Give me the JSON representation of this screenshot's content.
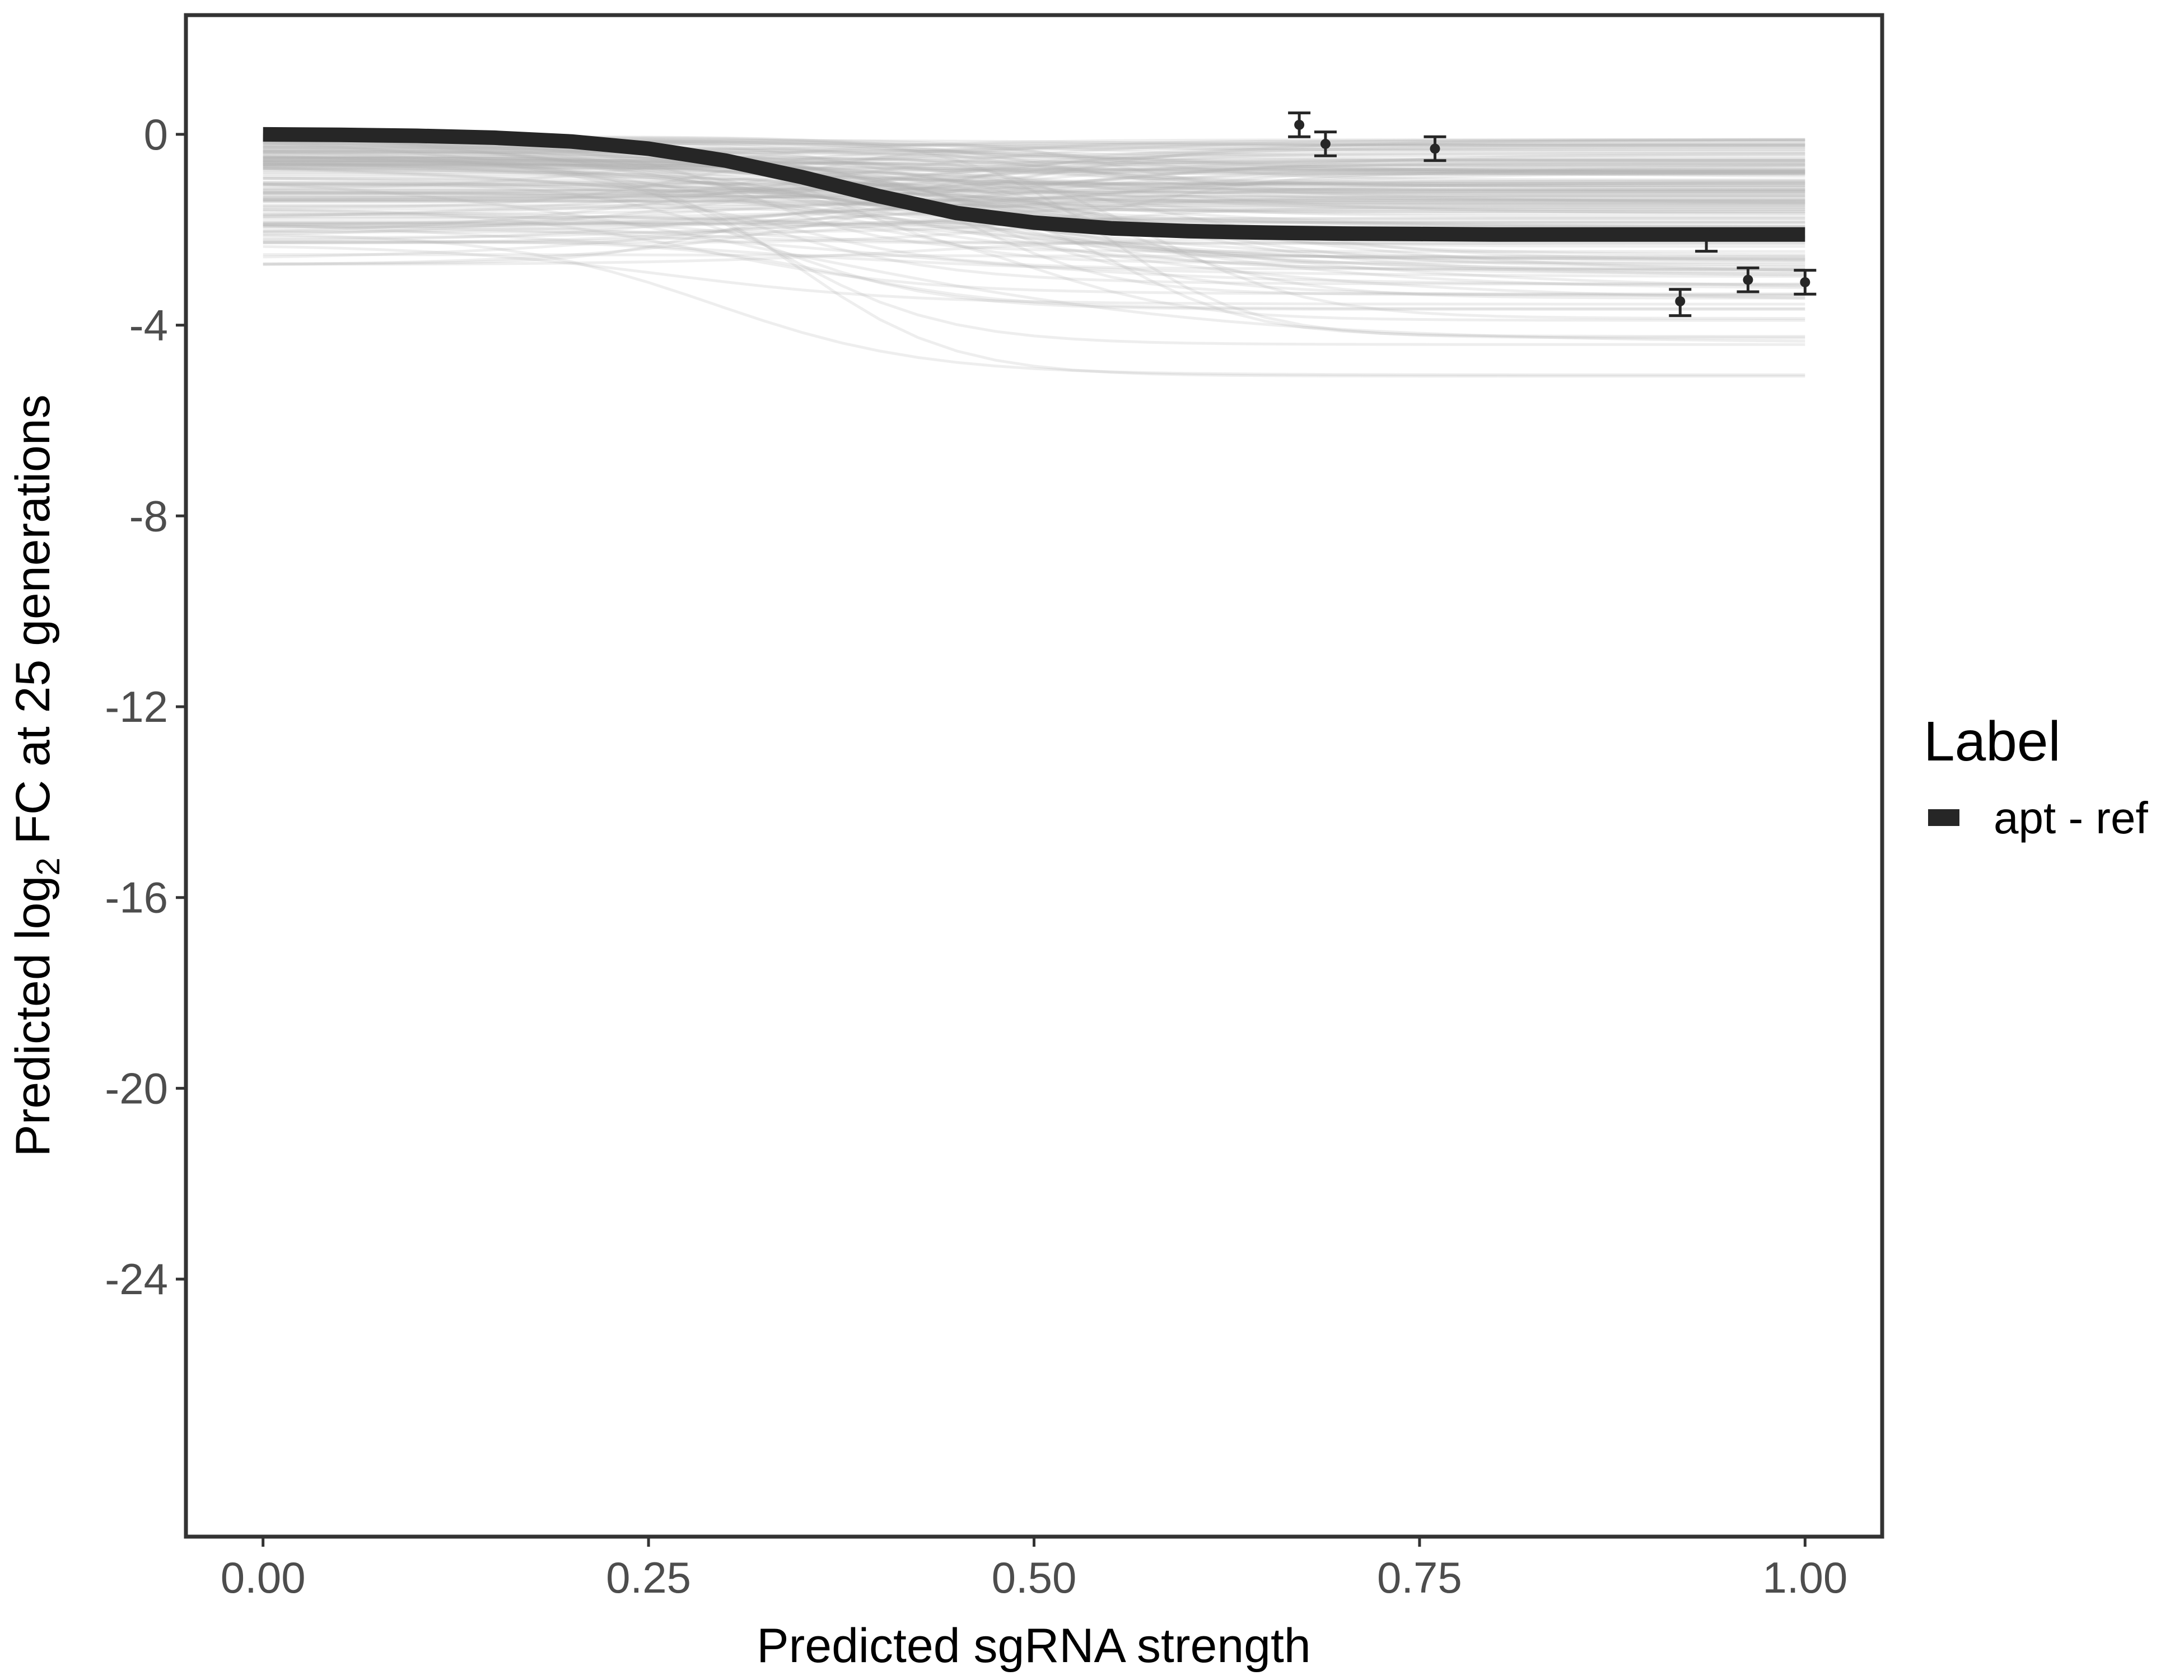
{
  "chart_data": {
    "type": "line",
    "title": "",
    "xlabel": "Predicted sgRNA strength",
    "ylabel": {
      "before": "Predicted  log",
      "subscript": "2",
      "after": " FC at 25 generations"
    },
    "xlim": [
      -0.05,
      1.05
    ],
    "ylim": [
      -29.4,
      2.5
    ],
    "x_ticks": [
      0.0,
      0.25,
      0.5,
      0.75,
      1.0
    ],
    "x_tick_labels": [
      "0.00",
      "0.25",
      "0.50",
      "0.75",
      "1.00"
    ],
    "y_ticks": [
      0,
      -4,
      -8,
      -12,
      -16,
      -20,
      -24
    ],
    "y_tick_labels": [
      "0",
      "-4",
      "-8",
      "-12",
      "-16",
      "-20",
      "-24"
    ],
    "grid": false,
    "legend": {
      "title": "Label",
      "position": "right",
      "entries": [
        {
          "label": "apt - ref",
          "color": "#262626"
        }
      ]
    },
    "series": [
      {
        "name": "apt - ref",
        "role": "fitted curve",
        "color": "#262626",
        "x": [
          0.0,
          0.05,
          0.1,
          0.15,
          0.2,
          0.25,
          0.3,
          0.35,
          0.4,
          0.45,
          0.5,
          0.55,
          0.6,
          0.65,
          0.7,
          0.75,
          0.8,
          0.85,
          0.9,
          0.95,
          1.0
        ],
        "y": [
          0.0,
          -0.01,
          -0.03,
          -0.07,
          -0.15,
          -0.3,
          -0.55,
          -0.9,
          -1.3,
          -1.65,
          -1.85,
          -1.97,
          -2.03,
          -2.06,
          -2.08,
          -2.09,
          -2.1,
          -2.1,
          -2.1,
          -2.1,
          -2.1
        ]
      }
    ],
    "posterior_draws": {
      "description": "many light grey posterior draw curves",
      "color": "#b3b3b3",
      "count": 160,
      "start_range": [
        -2.8,
        0.0
      ],
      "end_range": [
        -5.4,
        -0.1
      ]
    },
    "observed_points": [
      {
        "x": 0.672,
        "y": 0.2,
        "ymin": -0.05,
        "ymax": 0.45
      },
      {
        "x": 0.689,
        "y": -0.2,
        "ymin": -0.45,
        "ymax": 0.05
      },
      {
        "x": 0.76,
        "y": -0.3,
        "ymin": -0.55,
        "ymax": -0.05
      },
      {
        "x": 0.936,
        "y": -2.1,
        "ymin": -2.45,
        "ymax": -2.1
      },
      {
        "x": 0.919,
        "y": -3.5,
        "ymin": -3.8,
        "ymax": -3.25
      },
      {
        "x": 0.963,
        "y": -3.05,
        "ymin": -3.3,
        "ymax": -2.8
      },
      {
        "x": 1.0,
        "y": -3.1,
        "ymin": -3.35,
        "ymax": -2.85
      }
    ]
  }
}
